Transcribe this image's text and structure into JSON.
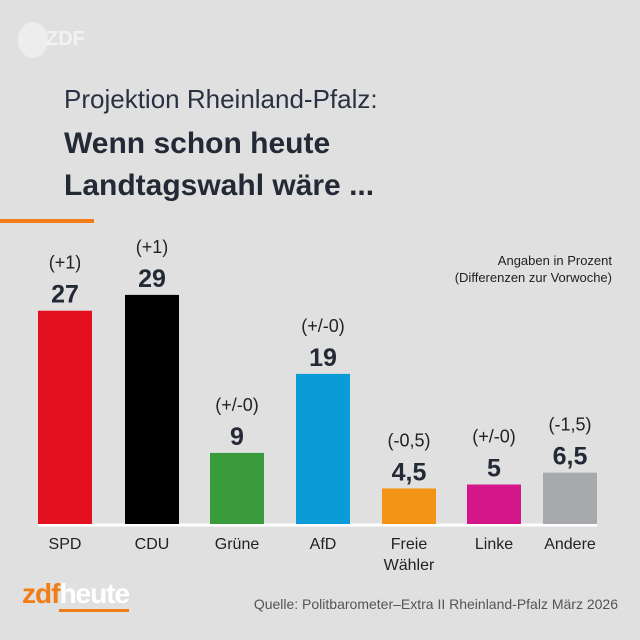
{
  "header": {
    "watermark": "ZDF",
    "subtitle": "Projektion Rheinland-Pfalz:",
    "title_line1": "Wenn schon heute",
    "title_line2": "Landtagswahl wäre ..."
  },
  "note": {
    "line1": "Angaben in Prozent",
    "line2": "(Differenzen zur Vorwoche)"
  },
  "chart_data": {
    "type": "bar",
    "categories": [
      "SPD",
      "CDU",
      "Grüne",
      "AfD",
      "Freie Wähler",
      "Linke",
      "Andere"
    ],
    "values": [
      27,
      29,
      9,
      19,
      4.5,
      5,
      6.5
    ],
    "value_labels": [
      "27",
      "29",
      "9",
      "19",
      "4,5",
      "5",
      "6,5"
    ],
    "changes": [
      "(+1)",
      "(+1)",
      "(+/-0)",
      "(+/-0)",
      "(-0,5)",
      "(+/-0)",
      "(-1,5)"
    ],
    "colors": [
      "#e3101f",
      "#000000",
      "#3a9b3c",
      "#0b9bd6",
      "#f39416",
      "#d3178b",
      "#a8a9ad"
    ],
    "ylabel": "Angaben in Prozent"
  },
  "footer": {
    "brand_zdf": "zdf",
    "brand_heute": "heute",
    "source": "Quelle: Politbarometer–Extra II Rheinland-Pfalz März 2026"
  }
}
